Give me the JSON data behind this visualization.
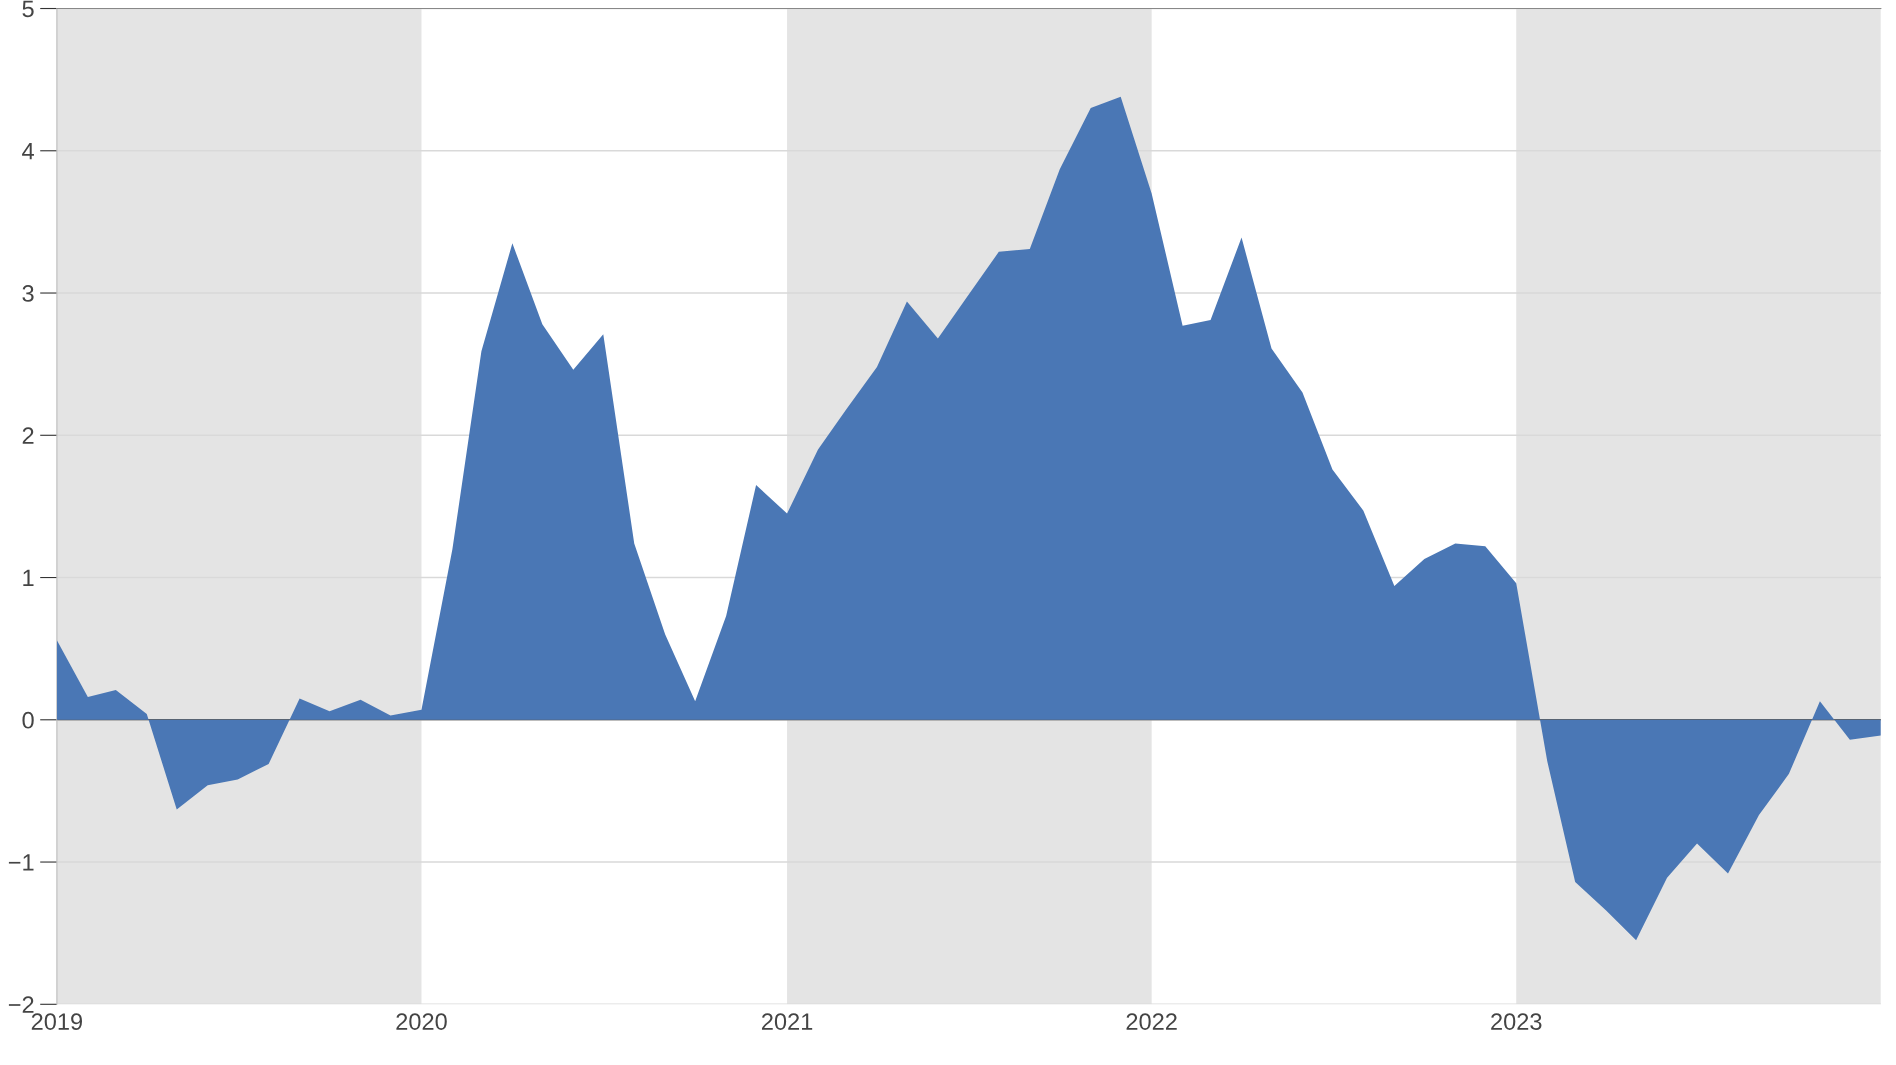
{
  "chart_data": {
    "type": "area",
    "x": [
      "2019-01",
      "2019-02",
      "2019-03",
      "2019-04",
      "2019-05",
      "2019-06",
      "2019-07",
      "2019-08",
      "2019-09",
      "2019-10",
      "2019-11",
      "2019-12",
      "2020-01",
      "2020-02",
      "2020-03",
      "2020-04",
      "2020-05",
      "2020-06",
      "2020-07",
      "2020-08",
      "2020-09",
      "2020-10",
      "2020-11",
      "2020-12",
      "2021-01",
      "2021-02",
      "2021-03",
      "2021-04",
      "2021-05",
      "2021-06",
      "2021-07",
      "2021-08",
      "2021-09",
      "2021-10",
      "2021-11",
      "2021-12",
      "2022-01",
      "2022-02",
      "2022-03",
      "2022-04",
      "2022-05",
      "2022-06",
      "2022-07",
      "2022-08",
      "2022-09",
      "2022-10",
      "2022-11",
      "2022-12",
      "2023-01",
      "2023-02",
      "2023-03",
      "2023-04",
      "2023-05",
      "2023-06",
      "2023-07",
      "2023-08",
      "2023-09",
      "2023-10",
      "2023-11",
      "2023-12",
      "2024-01"
    ],
    "series": [
      {
        "color": "#4a77b5",
        "values": [
          0.56,
          0.16,
          0.21,
          0.04,
          -0.63,
          -0.46,
          -0.42,
          -0.31,
          0.15,
          0.06,
          0.14,
          0.03,
          0.07,
          1.2,
          2.59,
          3.35,
          2.78,
          2.46,
          2.71,
          1.24,
          0.6,
          0.13,
          0.73,
          1.65,
          1.45,
          1.9,
          2.18,
          2.48,
          2.94,
          2.68,
          2.98,
          3.29,
          3.31,
          3.87,
          4.3,
          4.38,
          3.7,
          2.77,
          2.81,
          3.39,
          2.61,
          2.3,
          1.76,
          1.47,
          0.94,
          1.13,
          1.24,
          1.22,
          0.96,
          -0.29,
          -1.14,
          -1.34,
          -1.55,
          -1.11,
          -0.87,
          -1.08,
          -0.67,
          -0.38,
          0.13,
          -0.14,
          -0.11
        ]
      }
    ],
    "xlim": [
      "2019-01",
      "2024-01"
    ],
    "xticks": [
      "2019",
      "2020",
      "2021",
      "2022",
      "2023"
    ],
    "ylim": [
      -2,
      5
    ],
    "yticks": [
      {
        "value": -2,
        "label": "−2"
      },
      {
        "value": -1,
        "label": "−1"
      },
      0,
      1,
      2,
      3,
      4,
      5
    ],
    "grid": "y",
    "bands": [
      {
        "axis": "x",
        "from": "2019-01",
        "to": "2020-01",
        "color": "#e4e4e4"
      },
      {
        "axis": "x",
        "from": "2021-01",
        "to": "2022-01",
        "color": "#e4e4e4"
      },
      {
        "axis": "x",
        "from": "2023-01",
        "to": "2024-01",
        "color": "#e4e4e4"
      }
    ]
  }
}
